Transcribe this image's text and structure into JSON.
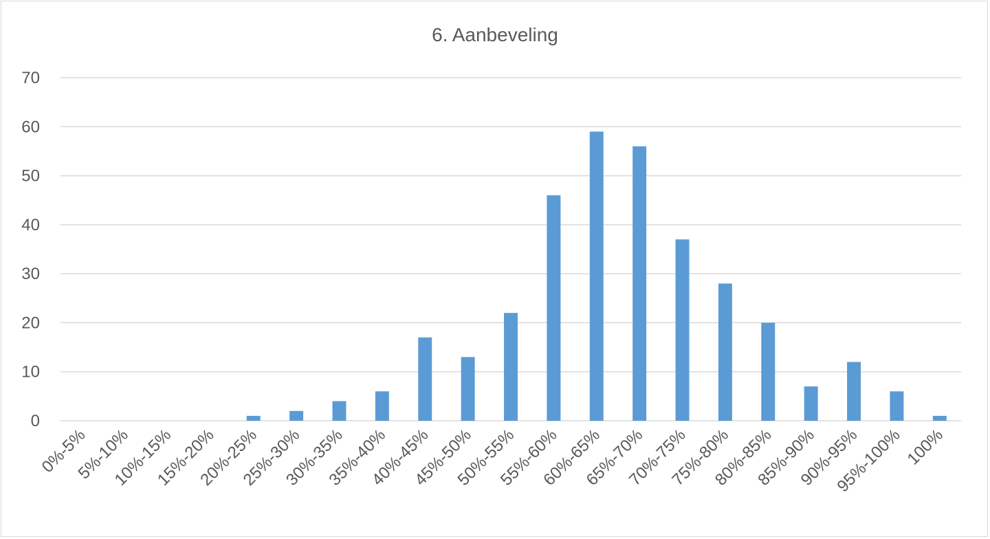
{
  "chart_data": {
    "type": "bar",
    "title": "6. Aanbeveling",
    "xlabel": "",
    "ylabel": "",
    "ylim": [
      0,
      70
    ],
    "yticks": [
      0,
      10,
      20,
      30,
      40,
      50,
      60,
      70
    ],
    "grid": true,
    "legend": "none",
    "categories": [
      "0%-5%",
      "5%-10%",
      "10%-15%",
      "15%-20%",
      "20%-25%",
      "25%-30%",
      "30%-35%",
      "35%-40%",
      "40%-45%",
      "45%-50%",
      "50%-55%",
      "55%-60%",
      "60%-65%",
      "65%-70%",
      "70%-75%",
      "75%-80%",
      "80%-85%",
      "85%-90%",
      "90%-95%",
      "95%-100%",
      "100%"
    ],
    "values": [
      0,
      0,
      0,
      0,
      1,
      2,
      4,
      6,
      17,
      13,
      22,
      46,
      59,
      56,
      37,
      28,
      20,
      7,
      12,
      6,
      1
    ],
    "bar_color": "#5b9bd5",
    "gridline_color": "#d9d9d9",
    "text_color": "#595959"
  }
}
